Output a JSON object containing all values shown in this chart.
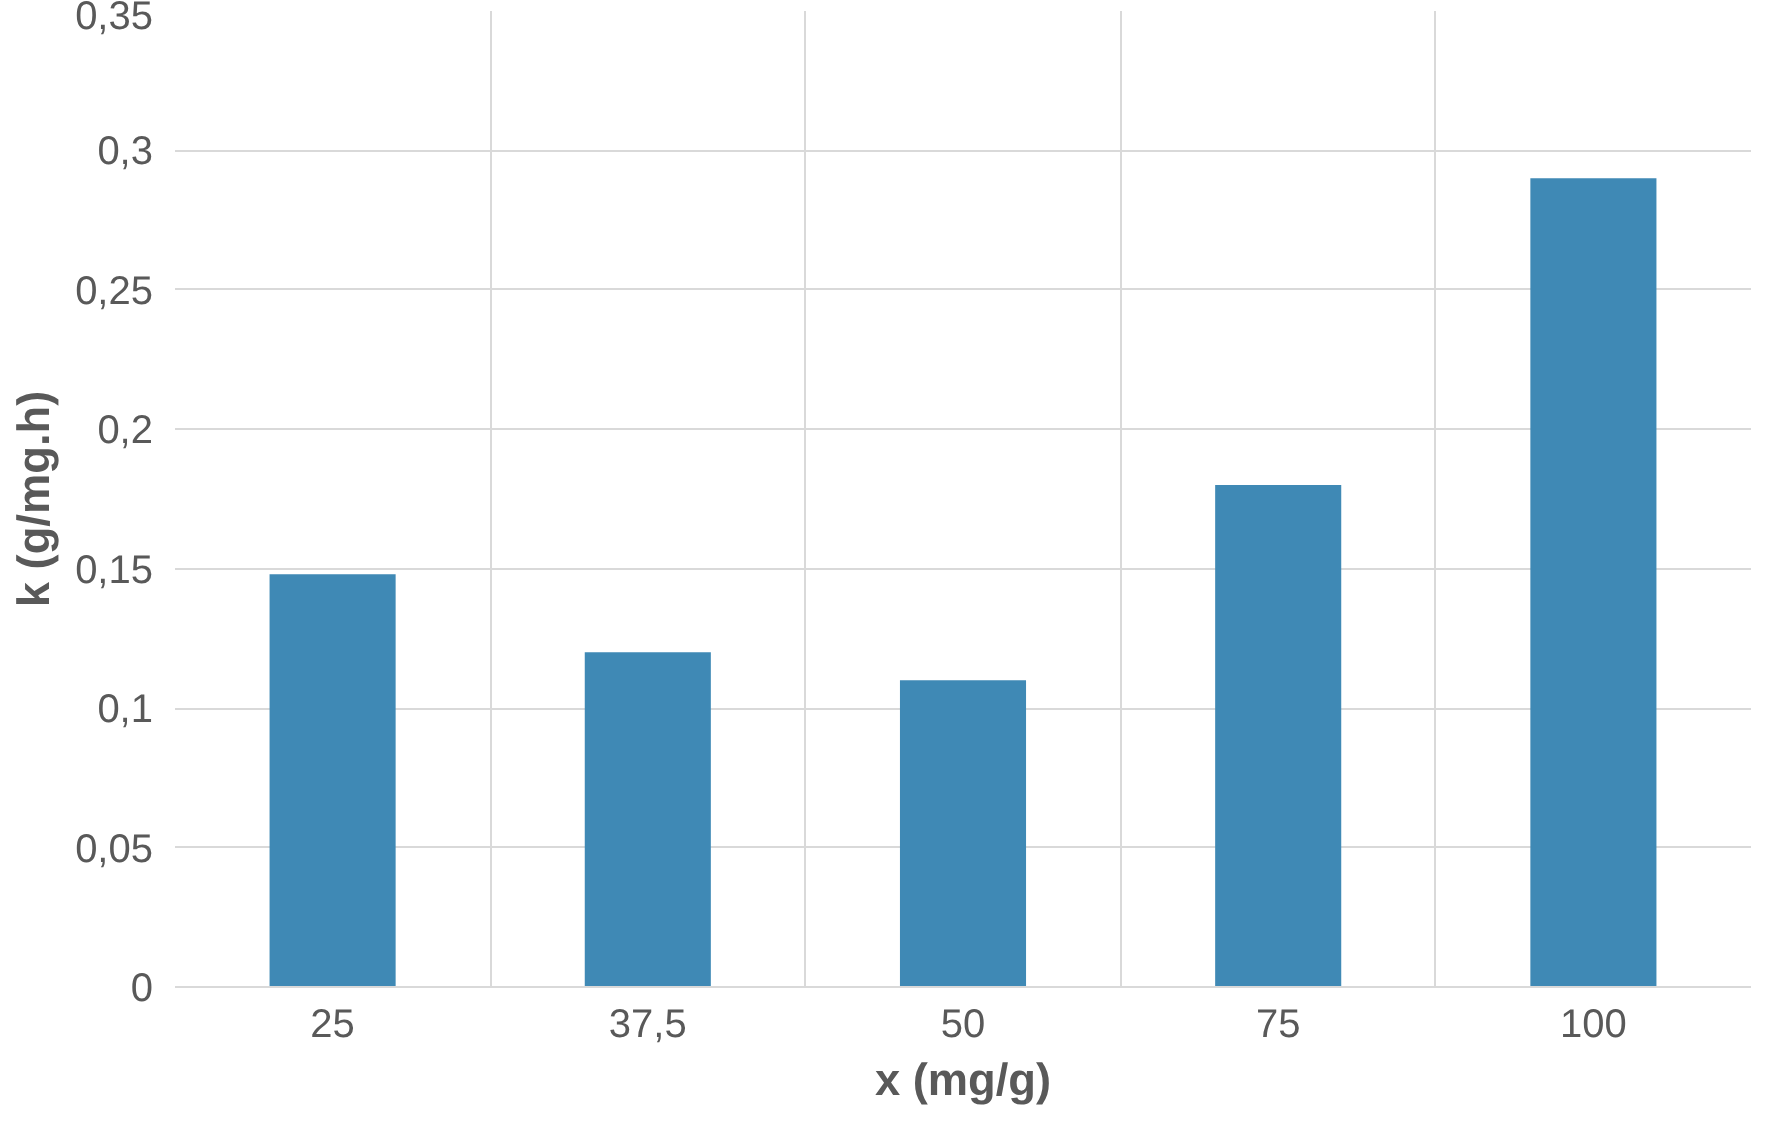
{
  "chart_data": {
    "type": "bar",
    "xlabel": "x (mg/g)",
    "ylabel": "k (g/mg.h)",
    "categories": [
      "25",
      "37,5",
      "50",
      "75",
      "100"
    ],
    "values": [
      0.148,
      0.12,
      0.11,
      0.18,
      0.29
    ],
    "color": "#3f89b5",
    "ylim": [
      0,
      0.35
    ],
    "yticks": [
      0,
      {
        "value": 0.05,
        "label": "0,05"
      },
      {
        "value": 0.1,
        "label": "0,1"
      },
      {
        "value": 0.15,
        "label": "0,15"
      },
      {
        "value": 0.2,
        "label": "0,2"
      },
      {
        "value": 0.25,
        "label": "0,25"
      },
      {
        "value": 0.3,
        "label": "0,3"
      },
      {
        "value": 0.35,
        "label": "0,35"
      }
    ],
    "grid": true
  }
}
